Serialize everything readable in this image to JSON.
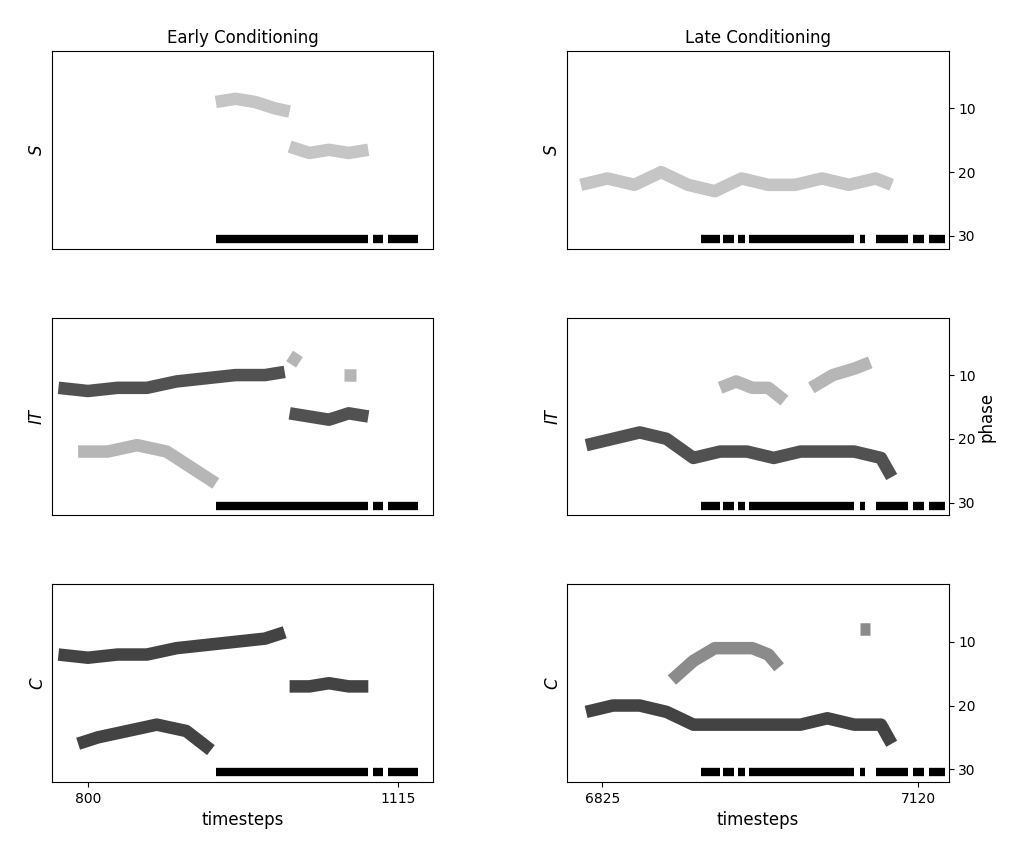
{
  "chart_data": [
    {
      "type": "line",
      "title": "Early Conditioning",
      "ylabel": "S",
      "xlim": [
        763,
        1151
      ],
      "ylim": [
        32,
        1
      ],
      "xticks": [
        800,
        1115
      ],
      "yticks": [
        10,
        20,
        30
      ],
      "tick_labels": false,
      "stimulus_phase": 30.5,
      "stimulus": [
        [
          930,
          1085
        ],
        [
          1090,
          1100
        ],
        [
          1105,
          1136
        ]
      ],
      "series": [
        {
          "color": "#bbbbbb",
          "x": [
            930,
            950,
            970,
            990,
            1005
          ],
          "values": [
            9,
            8.5,
            9,
            10,
            10.5
          ]
        },
        {
          "color": "#bbbbbb",
          "x": [
            1005,
            1025,
            1045,
            1065,
            1085
          ],
          "values": [
            16,
            17,
            16.5,
            17,
            16.5
          ]
        }
      ]
    },
    {
      "type": "line",
      "title": "Late Conditioning",
      "ylabel": "S",
      "xlim": [
        6792,
        7148
      ],
      "ylim": [
        32,
        1
      ],
      "xticks": [
        6825,
        7120
      ],
      "yticks": [
        10,
        20,
        30
      ],
      "tick_labels": "y",
      "stimulus_phase": 30.5,
      "stimulus": [
        [
          6917,
          6935
        ],
        [
          6938,
          6948
        ],
        [
          6952,
          6958
        ],
        [
          6962,
          7060
        ],
        [
          7065,
          7070
        ],
        [
          7080,
          7110
        ],
        [
          7115,
          7125
        ],
        [
          7130,
          7145
        ]
      ],
      "series": [
        {
          "color": "#bbbbbb",
          "x": [
            6805,
            6830,
            6855,
            6880,
            6905,
            6930,
            6955,
            6980,
            7005,
            7030,
            7055,
            7080,
            7095
          ],
          "values": [
            22,
            21,
            22,
            20,
            22,
            23,
            21,
            22,
            22,
            21,
            22,
            21,
            22
          ]
        }
      ]
    },
    {
      "type": "line",
      "ylabel": "IT",
      "xlim": [
        763,
        1151
      ],
      "ylim": [
        32,
        1
      ],
      "xticks": [
        800,
        1115
      ],
      "yticks": [
        10,
        20,
        30
      ],
      "tick_labels": false,
      "stimulus_phase": 30.5,
      "stimulus": [
        [
          930,
          1085
        ],
        [
          1090,
          1100
        ],
        [
          1105,
          1136
        ]
      ],
      "series": [
        {
          "color": "#333333",
          "x": [
            770,
            800,
            830,
            860,
            890,
            920,
            950,
            980,
            1000
          ],
          "values": [
            12,
            12.5,
            12,
            12,
            11,
            10.5,
            10,
            10,
            9.5
          ]
        },
        {
          "color": "#333333",
          "x": [
            1005,
            1025,
            1045,
            1065,
            1085
          ],
          "values": [
            16,
            16.5,
            17,
            16,
            16.5
          ]
        },
        {
          "color": "#aaaaaa",
          "x": [
            790,
            820,
            850,
            880,
            910,
            930
          ],
          "values": [
            22,
            22,
            21,
            22,
            25,
            27
          ]
        },
        {
          "color": "#aaaaaa",
          "x": [
            1005,
            1015
          ],
          "values": [
            7,
            8
          ]
        },
        {
          "color": "#aaaaaa",
          "x": [
            1060,
            1072
          ],
          "values": [
            10,
            10
          ]
        }
      ]
    },
    {
      "type": "line",
      "ylabel": "IT",
      "right_label": "phase",
      "xlim": [
        6792,
        7148
      ],
      "ylim": [
        32,
        1
      ],
      "xticks": [
        6825,
        7120
      ],
      "yticks": [
        10,
        20,
        30
      ],
      "tick_labels": "y",
      "stimulus_phase": 30.5,
      "stimulus": [
        [
          6917,
          6935
        ],
        [
          6938,
          6948
        ],
        [
          6952,
          6958
        ],
        [
          6962,
          7060
        ],
        [
          7065,
          7070
        ],
        [
          7080,
          7110
        ],
        [
          7115,
          7125
        ],
        [
          7130,
          7145
        ]
      ],
      "series": [
        {
          "color": "#333333",
          "x": [
            6810,
            6835,
            6860,
            6885,
            6910,
            6935,
            6960,
            6985,
            7010,
            7035,
            7060,
            7085,
            7095
          ],
          "values": [
            21,
            20,
            19,
            20,
            23,
            22,
            22,
            23,
            22,
            22,
            22,
            23,
            26
          ]
        },
        {
          "color": "#aaaaaa",
          "x": [
            6935,
            6950,
            6965,
            6980,
            6995
          ],
          "values": [
            12,
            11,
            12,
            12,
            14
          ]
        },
        {
          "color": "#aaaaaa",
          "x": [
            7020,
            7040,
            7060,
            7075
          ],
          "values": [
            12,
            10,
            9,
            8
          ]
        }
      ]
    },
    {
      "type": "line",
      "ylabel": "C",
      "xlabel": "timesteps",
      "xlim": [
        763,
        1151
      ],
      "ylim": [
        32,
        1
      ],
      "xticks": [
        800,
        1115
      ],
      "yticks": [
        10,
        20,
        30
      ],
      "tick_labels": "x",
      "stimulus_phase": 30.5,
      "stimulus": [
        [
          930,
          1085
        ],
        [
          1090,
          1100
        ],
        [
          1105,
          1136
        ]
      ],
      "series": [
        {
          "color": "#222222",
          "x": [
            770,
            800,
            830,
            860,
            890,
            920,
            950,
            980,
            1000
          ],
          "values": [
            12,
            12.5,
            12,
            12,
            11,
            10.5,
            10,
            9.5,
            8.5
          ]
        },
        {
          "color": "#222222",
          "x": [
            1005,
            1025,
            1045,
            1065,
            1085
          ],
          "values": [
            17,
            17,
            16.5,
            17,
            17
          ]
        },
        {
          "color": "#222222",
          "x": [
            790,
            810,
            840,
            870,
            900,
            925
          ],
          "values": [
            26,
            25,
            24,
            23,
            24,
            27
          ]
        }
      ]
    },
    {
      "type": "line",
      "ylabel": "C",
      "xlabel": "timesteps",
      "xlim": [
        6792,
        7148
      ],
      "ylim": [
        32,
        1
      ],
      "xticks": [
        6825,
        7120
      ],
      "yticks": [
        10,
        20,
        30
      ],
      "tick_labels": true,
      "stimulus_phase": 30.5,
      "stimulus": [
        [
          6917,
          6935
        ],
        [
          6938,
          6948
        ],
        [
          6952,
          6958
        ],
        [
          6962,
          7060
        ],
        [
          7065,
          7070
        ],
        [
          7080,
          7110
        ],
        [
          7115,
          7125
        ],
        [
          7130,
          7145
        ]
      ],
      "series": [
        {
          "color": "#222222",
          "x": [
            6810,
            6835,
            6860,
            6885,
            6910,
            6935,
            6960,
            6985,
            7010,
            7035,
            7060,
            7085,
            7095
          ],
          "values": [
            21,
            20,
            20,
            21,
            23,
            23,
            23,
            23,
            23,
            22,
            23,
            23,
            26
          ]
        },
        {
          "color": "#777777",
          "x": [
            6890,
            6910,
            6930,
            6950,
            6965,
            6980,
            6990
          ],
          "values": [
            16,
            13,
            11,
            11,
            11,
            12,
            14
          ]
        },
        {
          "color": "#777777",
          "x": [
            7065,
            7075
          ],
          "values": [
            8,
            8
          ]
        }
      ]
    }
  ]
}
